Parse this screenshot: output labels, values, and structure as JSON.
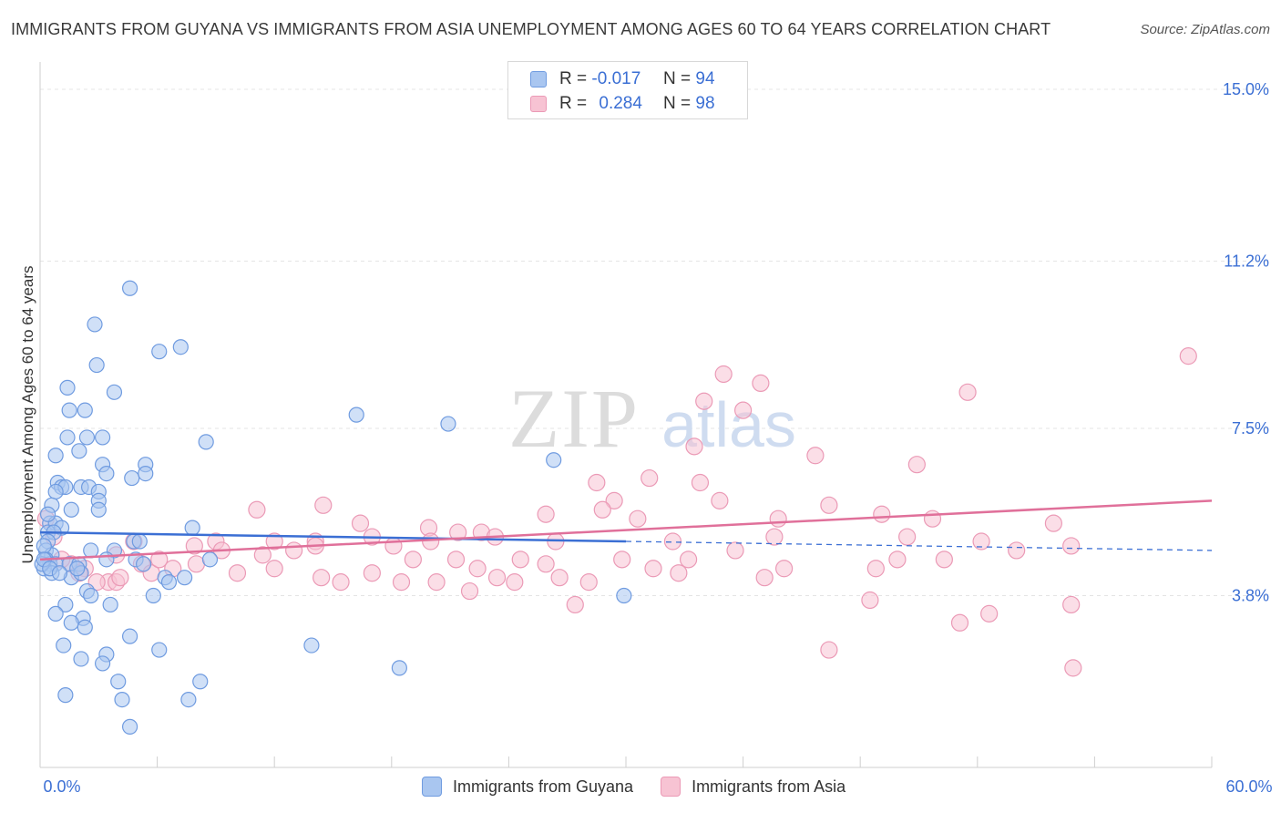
{
  "title": "IMMIGRANTS FROM GUYANA VS IMMIGRANTS FROM ASIA UNEMPLOYMENT AMONG AGES 60 TO 64 YEARS CORRELATION CHART",
  "source": "Source: ZipAtlas.com",
  "watermark": {
    "zip": "ZIP",
    "atlas": "atlas"
  },
  "legend": {
    "series1": {
      "r_label": "R =",
      "r_value": "-0.017",
      "n_label": "N =",
      "n_value": "94"
    },
    "series2": {
      "r_label": "R =",
      "r_value": "0.284",
      "n_label": "N =",
      "n_value": "98"
    }
  },
  "colors": {
    "blue": "#3b6fd4",
    "blue_fill": "#a9c6f0",
    "blue_stroke": "#6f9be0",
    "pink": "#e0709a",
    "pink_fill": "#f7c3d3",
    "pink_stroke": "#eb9ab6",
    "grid": "#e4e4e4",
    "axis_label": "#3b6fd4"
  },
  "chart_data": {
    "type": "scatter",
    "xlabel": "",
    "ylabel": "Unemployment Among Ages 60 to 64 years",
    "xlim": [
      0,
      60
    ],
    "ylim": [
      0,
      15
    ],
    "x_tick_labels": [
      "0.0%",
      "60.0%"
    ],
    "y_ticks": [
      3.8,
      7.5,
      11.2,
      15.0
    ],
    "y_tick_labels": [
      "3.8%",
      "7.5%",
      "11.2%",
      "15.0%"
    ],
    "grid": true,
    "series": [
      {
        "name": "Immigrants from Guyana",
        "color": "#3b6fd4",
        "trend": {
          "x": [
            0,
            30,
            60
          ],
          "y": [
            5.2,
            5.0,
            4.8
          ],
          "solid_until": 30
        },
        "points": [
          [
            4.6,
            10.6
          ],
          [
            2.8,
            9.8
          ],
          [
            6.1,
            9.2
          ],
          [
            7.2,
            9.3
          ],
          [
            2.9,
            8.9
          ],
          [
            3.8,
            8.3
          ],
          [
            1.4,
            8.4
          ],
          [
            1.5,
            7.9
          ],
          [
            2.3,
            7.9
          ],
          [
            1.4,
            7.3
          ],
          [
            2.4,
            7.3
          ],
          [
            3.2,
            7.3
          ],
          [
            8.5,
            7.2
          ],
          [
            16.2,
            7.8
          ],
          [
            20.9,
            7.6
          ],
          [
            26.3,
            6.8
          ],
          [
            0.8,
            6.9
          ],
          [
            2.0,
            7.0
          ],
          [
            3.2,
            6.7
          ],
          [
            5.4,
            6.7
          ],
          [
            3.4,
            6.5
          ],
          [
            4.7,
            6.4
          ],
          [
            5.4,
            6.5
          ],
          [
            0.9,
            6.3
          ],
          [
            1.1,
            6.2
          ],
          [
            1.3,
            6.2
          ],
          [
            2.1,
            6.2
          ],
          [
            2.5,
            6.2
          ],
          [
            3.0,
            6.1
          ],
          [
            0.8,
            6.1
          ],
          [
            3.0,
            5.9
          ],
          [
            0.6,
            5.8
          ],
          [
            1.6,
            5.7
          ],
          [
            3.0,
            5.7
          ],
          [
            0.5,
            5.4
          ],
          [
            0.8,
            5.4
          ],
          [
            1.1,
            5.3
          ],
          [
            0.4,
            5.2
          ],
          [
            0.7,
            5.2
          ],
          [
            0.4,
            5.0
          ],
          [
            4.8,
            5.0
          ],
          [
            5.1,
            5.0
          ],
          [
            7.8,
            5.3
          ],
          [
            0.3,
            4.8
          ],
          [
            0.6,
            4.7
          ],
          [
            2.6,
            4.8
          ],
          [
            3.8,
            4.8
          ],
          [
            0.3,
            4.6
          ],
          [
            0.5,
            4.5
          ],
          [
            0.8,
            4.5
          ],
          [
            1.5,
            4.5
          ],
          [
            2.0,
            4.5
          ],
          [
            3.4,
            4.6
          ],
          [
            4.9,
            4.6
          ],
          [
            5.3,
            4.5
          ],
          [
            8.7,
            4.6
          ],
          [
            0.2,
            4.4
          ],
          [
            0.6,
            4.3
          ],
          [
            1.6,
            4.2
          ],
          [
            2.1,
            4.3
          ],
          [
            6.4,
            4.2
          ],
          [
            7.4,
            4.2
          ],
          [
            6.6,
            4.1
          ],
          [
            2.4,
            3.9
          ],
          [
            2.6,
            3.8
          ],
          [
            5.8,
            3.8
          ],
          [
            29.9,
            3.8
          ],
          [
            1.3,
            3.6
          ],
          [
            3.6,
            3.6
          ],
          [
            0.8,
            3.4
          ],
          [
            2.2,
            3.3
          ],
          [
            1.6,
            3.2
          ],
          [
            2.3,
            3.1
          ],
          [
            4.6,
            2.9
          ],
          [
            1.2,
            2.7
          ],
          [
            6.1,
            2.6
          ],
          [
            13.9,
            2.7
          ],
          [
            3.4,
            2.5
          ],
          [
            2.1,
            2.4
          ],
          [
            3.2,
            2.3
          ],
          [
            18.4,
            2.2
          ],
          [
            4.0,
            1.9
          ],
          [
            8.2,
            1.9
          ],
          [
            1.3,
            1.6
          ],
          [
            4.2,
            1.5
          ],
          [
            7.6,
            1.5
          ],
          [
            4.6,
            0.9
          ],
          [
            0.1,
            4.5
          ],
          [
            0.2,
            4.9
          ],
          [
            0.4,
            5.6
          ],
          [
            1.9,
            4.4
          ],
          [
            0.2,
            4.6
          ],
          [
            0.5,
            4.4
          ],
          [
            1.0,
            4.3
          ]
        ]
      },
      {
        "name": "Immigrants from Asia",
        "color": "#e0709a",
        "trend": {
          "x": [
            0,
            60
          ],
          "y": [
            4.6,
            5.9
          ]
        },
        "points": [
          [
            58.8,
            9.1
          ],
          [
            35.0,
            8.7
          ],
          [
            36.9,
            8.5
          ],
          [
            47.5,
            8.3
          ],
          [
            34.0,
            8.1
          ],
          [
            36.0,
            7.9
          ],
          [
            33.5,
            7.1
          ],
          [
            39.7,
            6.9
          ],
          [
            44.9,
            6.7
          ],
          [
            31.2,
            6.4
          ],
          [
            33.8,
            6.3
          ],
          [
            28.5,
            6.3
          ],
          [
            29.4,
            5.9
          ],
          [
            34.8,
            5.9
          ],
          [
            40.4,
            5.8
          ],
          [
            28.8,
            5.7
          ],
          [
            25.9,
            5.6
          ],
          [
            30.6,
            5.5
          ],
          [
            37.8,
            5.5
          ],
          [
            43.1,
            5.6
          ],
          [
            45.7,
            5.5
          ],
          [
            51.9,
            5.4
          ],
          [
            11.1,
            5.7
          ],
          [
            14.5,
            5.8
          ],
          [
            16.4,
            5.4
          ],
          [
            19.9,
            5.3
          ],
          [
            21.4,
            5.2
          ],
          [
            22.6,
            5.2
          ],
          [
            14.1,
            5.0
          ],
          [
            17.0,
            5.1
          ],
          [
            20.0,
            5.0
          ],
          [
            23.3,
            5.1
          ],
          [
            26.4,
            5.0
          ],
          [
            32.4,
            5.0
          ],
          [
            37.6,
            5.1
          ],
          [
            44.4,
            5.1
          ],
          [
            48.2,
            5.0
          ],
          [
            52.8,
            4.9
          ],
          [
            4.8,
            5.0
          ],
          [
            7.9,
            4.9
          ],
          [
            9.0,
            5.0
          ],
          [
            9.3,
            4.8
          ],
          [
            11.4,
            4.7
          ],
          [
            12.0,
            5.0
          ],
          [
            13.0,
            4.8
          ],
          [
            14.1,
            4.9
          ],
          [
            18.1,
            4.9
          ],
          [
            19.1,
            4.6
          ],
          [
            21.3,
            4.6
          ],
          [
            22.4,
            4.4
          ],
          [
            24.6,
            4.6
          ],
          [
            25.9,
            4.5
          ],
          [
            29.8,
            4.6
          ],
          [
            31.4,
            4.4
          ],
          [
            33.2,
            4.6
          ],
          [
            35.6,
            4.8
          ],
          [
            42.8,
            4.4
          ],
          [
            43.9,
            4.6
          ],
          [
            46.3,
            4.6
          ],
          [
            50.0,
            4.8
          ],
          [
            3.9,
            4.7
          ],
          [
            5.2,
            4.5
          ],
          [
            5.7,
            4.3
          ],
          [
            6.1,
            4.6
          ],
          [
            6.8,
            4.4
          ],
          [
            8.0,
            4.5
          ],
          [
            10.1,
            4.3
          ],
          [
            12.0,
            4.4
          ],
          [
            14.4,
            4.2
          ],
          [
            15.4,
            4.1
          ],
          [
            17.0,
            4.3
          ],
          [
            18.5,
            4.1
          ],
          [
            20.3,
            4.1
          ],
          [
            23.4,
            4.2
          ],
          [
            24.3,
            4.1
          ],
          [
            26.6,
            4.2
          ],
          [
            28.1,
            4.1
          ],
          [
            32.7,
            4.3
          ],
          [
            37.1,
            4.2
          ],
          [
            38.1,
            4.4
          ],
          [
            3.5,
            4.1
          ],
          [
            3.9,
            4.1
          ],
          [
            4.1,
            4.2
          ],
          [
            2.3,
            4.4
          ],
          [
            2.9,
            4.1
          ],
          [
            1.6,
            4.5
          ],
          [
            1.1,
            4.6
          ],
          [
            0.7,
            5.1
          ],
          [
            22.0,
            3.9
          ],
          [
            27.4,
            3.6
          ],
          [
            42.5,
            3.7
          ],
          [
            48.6,
            3.4
          ],
          [
            52.8,
            3.6
          ],
          [
            47.1,
            3.2
          ],
          [
            40.4,
            2.6
          ],
          [
            52.9,
            2.2
          ],
          [
            0.3,
            5.5
          ],
          [
            2.0,
            4.3
          ]
        ]
      }
    ]
  },
  "x_axis_labels": {
    "left": "0.0%",
    "right": "60.0%"
  },
  "legend_bottom": {
    "item1": "Immigrants from Guyana",
    "item2": "Immigrants from Asia"
  }
}
